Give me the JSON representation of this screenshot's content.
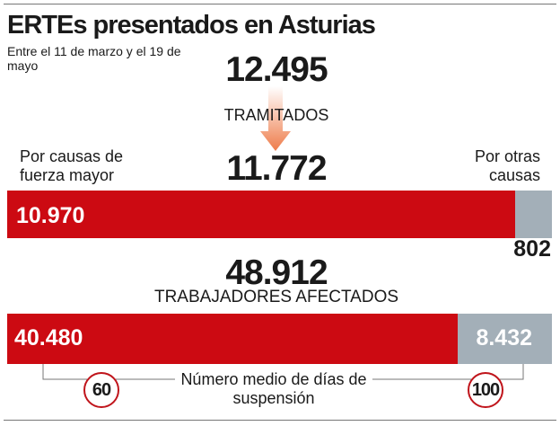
{
  "title": "ERTEs presentados en Asturias",
  "subtitle": "Entre el 11 de marzo y el 19 de mayo",
  "colors": {
    "fuerza_mayor": "#cc0a12",
    "otras_causas": "#a3afb8",
    "arrow": "#f08a5d"
  },
  "icons": {
    "arrow": "arrow-down-icon"
  },
  "chart_data": [
    {
      "type": "bar",
      "title": "",
      "presentados": "12.495",
      "presentados_label": "",
      "tramitados_label": "TRAMITADOS",
      "total": "11.772",
      "categories": [
        "Por causas de fuerza mayor",
        "Por otras causas"
      ],
      "values": [
        10970,
        802
      ],
      "value_labels": [
        "10.970",
        "802"
      ]
    },
    {
      "type": "bar",
      "total": "48.912",
      "total_label": "TRABAJADORES AFECTADOS",
      "categories": [
        "Por causas de fuerza mayor",
        "Por otras causas"
      ],
      "values": [
        40480,
        8432
      ],
      "value_labels": [
        "40.480",
        "8.432"
      ],
      "dias_label": "Número medio de días de suspensión",
      "dias": [
        "60",
        "100"
      ]
    }
  ]
}
